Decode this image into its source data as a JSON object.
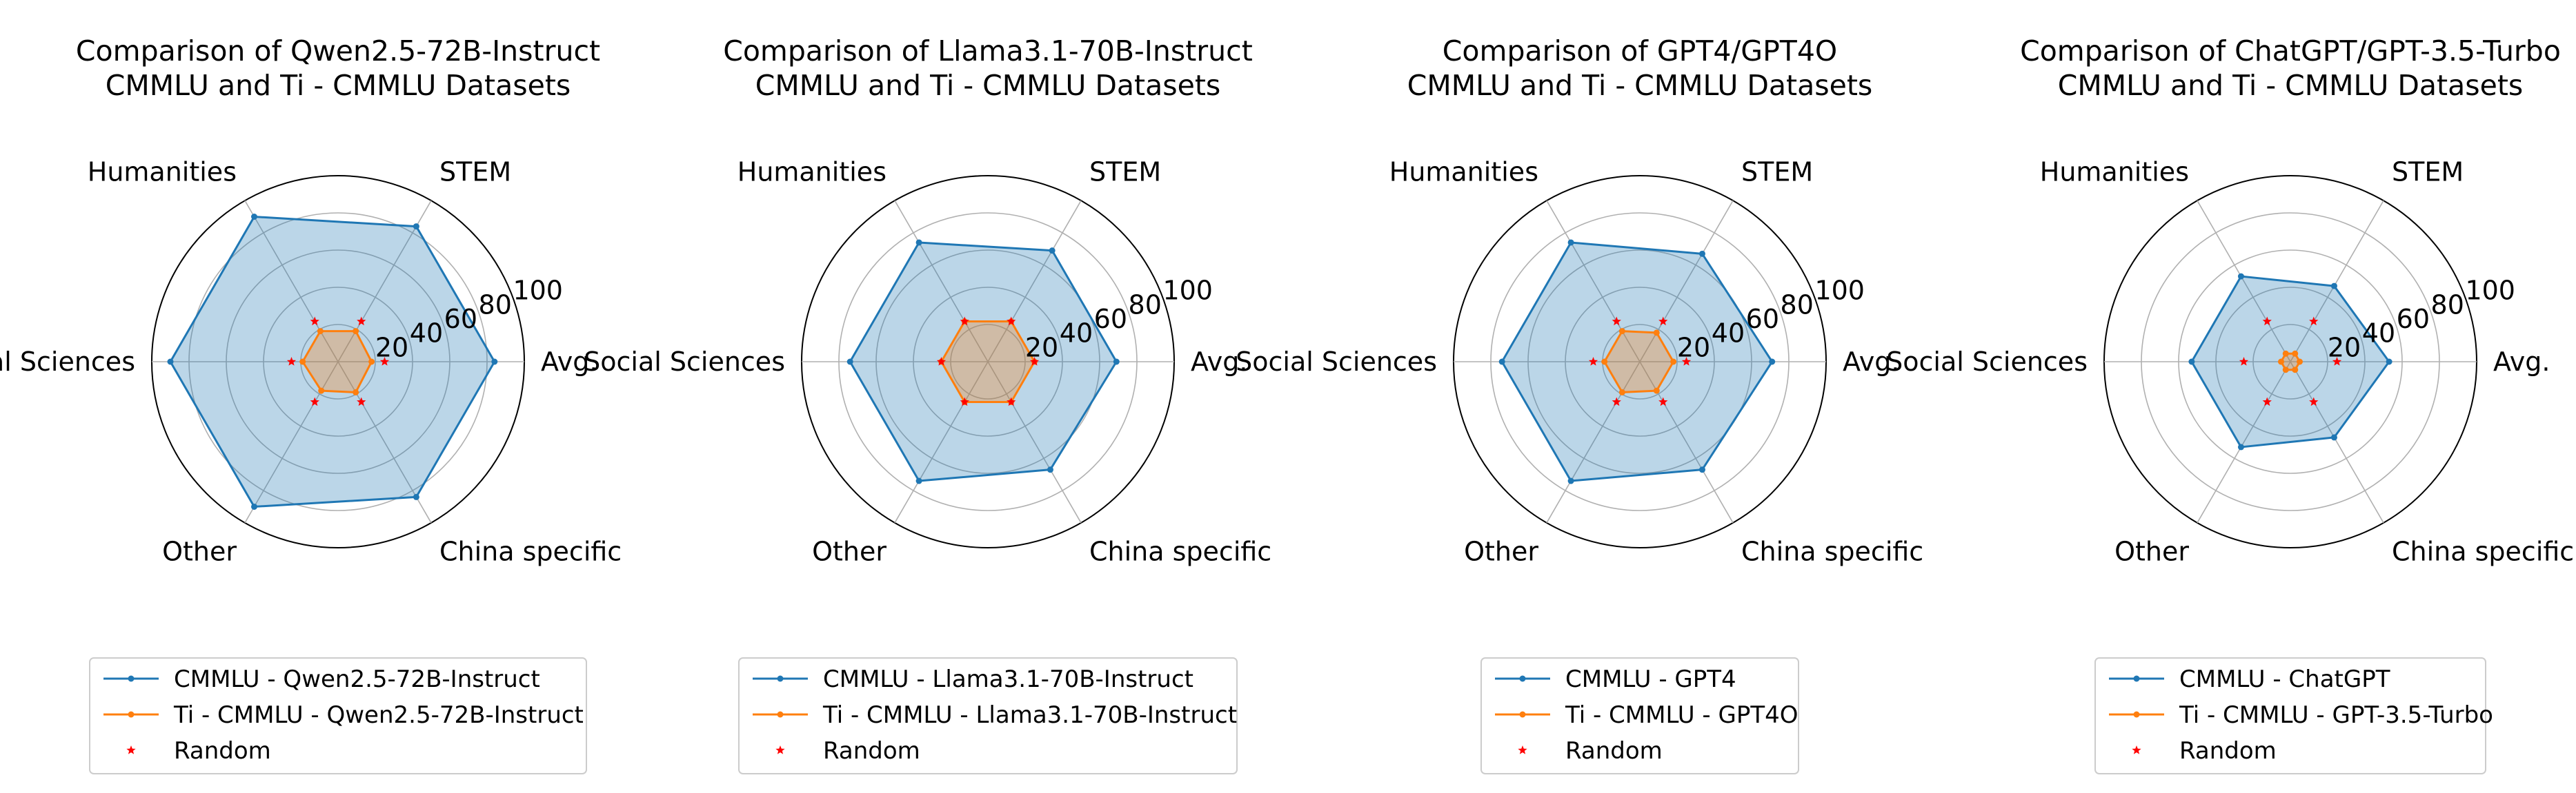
{
  "chart_data": [
    {
      "type": "radar",
      "title": "Comparison of Qwen2.5-72B-Instruct\nCMMLU and Ti - CMMLU Datasets",
      "categories": [
        "Avg.",
        "STEM",
        "Humanities",
        "Social Sciences",
        "Other",
        "China specific"
      ],
      "rlim": [
        0,
        100
      ],
      "rticks": [
        20,
        40,
        60,
        80,
        100
      ],
      "grid": true,
      "legend": "bottom",
      "series": [
        {
          "name": "CMMLU - Qwen2.5-72B-Instruct",
          "color": "#1f77b4",
          "values": [
            84.0,
            84.0,
            90.0,
            90.0,
            90.0,
            84.0
          ]
        },
        {
          "name": "Ti - CMMLU - Qwen2.5-72B-Instruct",
          "color": "#ff7f0e",
          "values": [
            18.0,
            19.0,
            19.0,
            19.0,
            18.0,
            19.0
          ]
        },
        {
          "name": "Random",
          "color": "#ff0000",
          "marker": "star",
          "values": [
            25,
            25,
            25,
            25,
            25,
            25
          ]
        }
      ]
    },
    {
      "type": "radar",
      "title": "Comparison of Llama3.1-70B-Instruct\nCMMLU and Ti - CMMLU Datasets",
      "categories": [
        "Avg.",
        "STEM",
        "Humanities",
        "Social Sciences",
        "Other",
        "China specific"
      ],
      "rlim": [
        0,
        100
      ],
      "rticks": [
        20,
        40,
        60,
        80,
        100
      ],
      "grid": true,
      "legend": "bottom",
      "series": [
        {
          "name": "CMMLU - Llama3.1-70B-Instruct",
          "color": "#1f77b4",
          "values": [
            69.0,
            69.0,
            74.0,
            74.0,
            74.0,
            67.0
          ]
        },
        {
          "name": "Ti - CMMLU - Llama3.1-70B-Instruct",
          "color": "#ff7f0e",
          "values": [
            25.0,
            25.0,
            25.0,
            25.0,
            25.0,
            25.0
          ]
        },
        {
          "name": "Random",
          "color": "#ff0000",
          "marker": "star",
          "values": [
            25,
            25,
            25,
            25,
            25,
            25
          ]
        }
      ]
    },
    {
      "type": "radar",
      "title": "Comparison of GPT4/GPT4O\nCMMLU and Ti - CMMLU Datasets",
      "categories": [
        "Avg.",
        "STEM",
        "Humanities",
        "Social Sciences",
        "Other",
        "China specific"
      ],
      "rlim": [
        0,
        100
      ],
      "rticks": [
        20,
        40,
        60,
        80,
        100
      ],
      "grid": true,
      "legend": "bottom",
      "series": [
        {
          "name": "CMMLU - GPT4",
          "color": "#1f77b4",
          "values": [
            71.0,
            67.0,
            74.0,
            74.0,
            74.0,
            67.0
          ]
        },
        {
          "name": "Ti - CMMLU - GPT4O",
          "color": "#ff7f0e",
          "values": [
            18.0,
            18.0,
            19.0,
            19.0,
            19.0,
            18.0
          ]
        },
        {
          "name": "Random",
          "color": "#ff0000",
          "marker": "star",
          "values": [
            25,
            25,
            25,
            25,
            25,
            25
          ]
        }
      ]
    },
    {
      "type": "radar",
      "title": "Comparison of ChatGPT/GPT-3.5-Turbo\nCMMLU and Ti - CMMLU Datasets",
      "categories": [
        "Avg.",
        "STEM",
        "Humanities",
        "Social Sciences",
        "Other",
        "China specific"
      ],
      "rlim": [
        0,
        100
      ],
      "rticks": [
        20,
        40,
        60,
        80,
        100
      ],
      "grid": true,
      "legend": "bottom",
      "series": [
        {
          "name": "CMMLU - ChatGPT",
          "color": "#1f77b4",
          "values": [
            53.0,
            47.0,
            53.0,
            53.0,
            53.0,
            47.0
          ]
        },
        {
          "name": "Ti - CMMLU - GPT-3.5-Turbo",
          "color": "#ff7f0e",
          "values": [
            5.0,
            5.0,
            5.0,
            5.0,
            5.0,
            5.0
          ]
        },
        {
          "name": "Random",
          "color": "#ff0000",
          "marker": "star",
          "values": [
            25,
            25,
            25,
            25,
            25,
            25
          ]
        }
      ]
    }
  ]
}
